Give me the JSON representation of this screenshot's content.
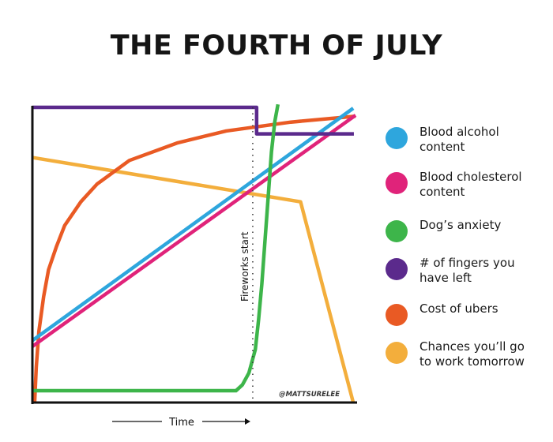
{
  "chart_data": {
    "type": "line",
    "title": "THE FOURTH OF JULY",
    "xlabel": "Time",
    "ylabel": "",
    "xlim": [
      0,
      100
    ],
    "ylim": [
      0,
      100
    ],
    "grid": false,
    "legend_position": "right",
    "annotations": [
      {
        "text": "Fireworks start",
        "x": 68.2,
        "type": "vertical-dotted-line"
      },
      {
        "text": "@MATTSURELEE",
        "type": "watermark",
        "position": "bottom-right"
      }
    ],
    "series": [
      {
        "name": "Blood alcohol content",
        "color": "#2ea6dd",
        "x": [
          0,
          99.3
        ],
        "y": [
          21,
          99.7
        ]
      },
      {
        "name": "Blood cholesterol content",
        "color": "#e0237a",
        "x": [
          0,
          100
        ],
        "y": [
          19,
          97.3
        ]
      },
      {
        "name": "Dog’s anxiety",
        "color": "#3db54a",
        "x": [
          0,
          63,
          65,
          67,
          69,
          70,
          71,
          72,
          73,
          74,
          75,
          76
        ],
        "y": [
          4,
          4,
          6,
          10,
          18,
          28,
          40,
          55,
          70,
          85,
          95,
          101
        ]
      },
      {
        "name": "# of fingers you have left",
        "color": "#5b2a8c",
        "x": [
          0,
          69.4,
          69.4,
          99.5
        ],
        "y": [
          100,
          100,
          91,
          91
        ]
      },
      {
        "name": "Cost of ubers",
        "color": "#e95a24",
        "x": [
          0.7,
          1.2,
          2,
          3.5,
          5,
          7.5,
          10,
          15,
          20,
          30,
          45,
          60,
          80,
          100
        ],
        "y": [
          0,
          12,
          24,
          36,
          45,
          53,
          60,
          68,
          74,
          82,
          88,
          92,
          95,
          97
        ]
      },
      {
        "name": "Chances you’ll go to work tomorrow",
        "color": "#f3ae3c",
        "x": [
          0,
          83,
          99.3
        ],
        "y": [
          83,
          68,
          0
        ]
      }
    ]
  }
}
